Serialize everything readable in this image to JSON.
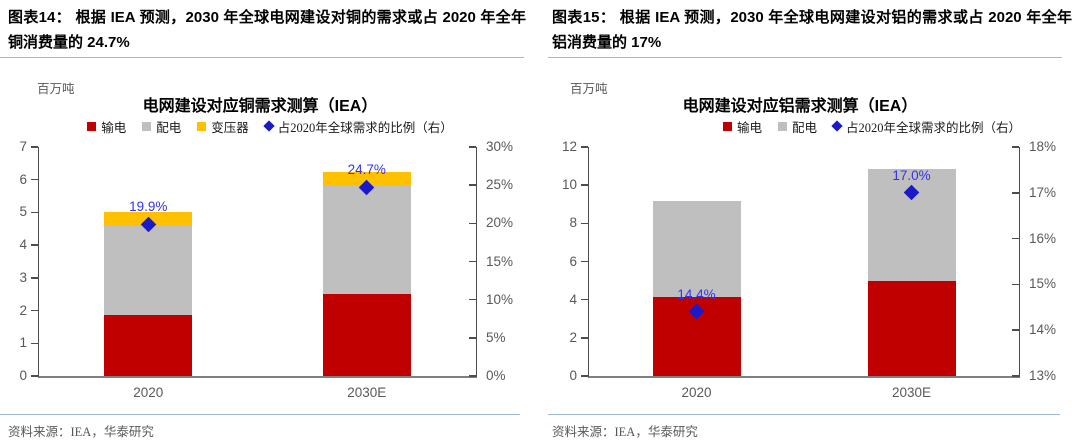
{
  "figures": [
    {
      "id": "copper",
      "caption": "图表14：  根据 IEA 预测，2030 年全球电网建设对铜的需求或占 2020 年全年铜消费量的 24.7%",
      "source": "资料来源：IEA，华泰研究"
    },
    {
      "id": "aluminum",
      "caption": "图表15：  根据 IEA 预测，2030 年全球电网建设对铝的需求或占 2020 年全年铝消费量的 17%",
      "source": "资料来源：IEA，华泰研究"
    }
  ],
  "chart_data": [
    {
      "type": "bar",
      "subtype": "stacked-bars-with-right-axis-scatter",
      "title": "电网建设对应铜需求测算（IEA）",
      "unit_label": "百万吨",
      "categories": [
        "2020",
        "2030E"
      ],
      "series": [
        {
          "name": "输电",
          "color": "#C00000",
          "values": [
            1.85,
            2.5
          ]
        },
        {
          "name": "配电",
          "color": "#BFBFBF",
          "values": [
            2.75,
            3.3
          ]
        },
        {
          "name": "变压器",
          "color": "#FFC000",
          "values": [
            0.4,
            0.45
          ]
        }
      ],
      "stack_totals": [
        5.0,
        6.25
      ],
      "scatter_series": {
        "name": "占2020年全球需求的比例（右）",
        "axis": "right",
        "marker": "diamond",
        "color": "#1A1AC8",
        "label_color": "#3232F0",
        "values_pct": [
          19.9,
          24.7
        ],
        "point_labels": [
          "19.9%",
          "24.7%"
        ]
      },
      "left_axis": {
        "min": 0,
        "max": 7,
        "tick_values": [
          0,
          1,
          2,
          3,
          4,
          5,
          6,
          7
        ],
        "tick_labels": [
          "0",
          "1",
          "2",
          "3",
          "4",
          "5",
          "6",
          "7"
        ]
      },
      "right_axis": {
        "min": 0,
        "max": 30,
        "tick_values": [
          0,
          5,
          10,
          15,
          20,
          25,
          30
        ],
        "tick_labels": [
          "0%",
          "5%",
          "10%",
          "15%",
          "20%",
          "25%",
          "30%"
        ]
      },
      "legend": [
        {
          "label": "输电",
          "color": "#C00000",
          "shape": "square"
        },
        {
          "label": "配电",
          "color": "#BFBFBF",
          "shape": "square"
        },
        {
          "label": "变压器",
          "color": "#FFC000",
          "shape": "square"
        },
        {
          "label": "占2020年全球需求的比例（右）",
          "color": "#1A1AC8",
          "shape": "diamond"
        }
      ],
      "grid": false,
      "legend_position": "top-center"
    },
    {
      "type": "bar",
      "subtype": "stacked-bars-with-right-axis-scatter",
      "title": "电网建设对应铝需求测算（IEA）",
      "unit_label": "百万吨",
      "categories": [
        "2020",
        "2030E"
      ],
      "series": [
        {
          "name": "输电",
          "color": "#C00000",
          "values": [
            4.15,
            5.0
          ]
        },
        {
          "name": "配电",
          "color": "#BFBFBF",
          "values": [
            5.0,
            5.85
          ]
        }
      ],
      "stack_totals": [
        9.15,
        10.85
      ],
      "scatter_series": {
        "name": "占2020年全球需求的比例（右）",
        "axis": "right",
        "marker": "diamond",
        "color": "#1A1AC8",
        "label_color": "#3232F0",
        "values_pct": [
          14.4,
          17.0
        ],
        "point_labels": [
          "14.4%",
          "17.0%"
        ]
      },
      "left_axis": {
        "min": 0,
        "max": 12,
        "tick_values": [
          0,
          2,
          4,
          6,
          8,
          10,
          12
        ],
        "tick_labels": [
          "0",
          "2",
          "4",
          "6",
          "8",
          "10",
          "12"
        ]
      },
      "right_axis": {
        "min": 13,
        "max": 18,
        "tick_values": [
          13,
          14,
          15,
          16,
          17,
          18
        ],
        "tick_labels": [
          "13%",
          "14%",
          "15%",
          "16%",
          "17%",
          "18%"
        ]
      },
      "legend": [
        {
          "label": "输电",
          "color": "#C00000",
          "shape": "square"
        },
        {
          "label": "配电",
          "color": "#BFBFBF",
          "shape": "square"
        },
        {
          "label": "占2020年全球需求的比例（右）",
          "color": "#1A1AC8",
          "shape": "diamond"
        }
      ],
      "grid": false,
      "legend_position": "top-center"
    }
  ]
}
